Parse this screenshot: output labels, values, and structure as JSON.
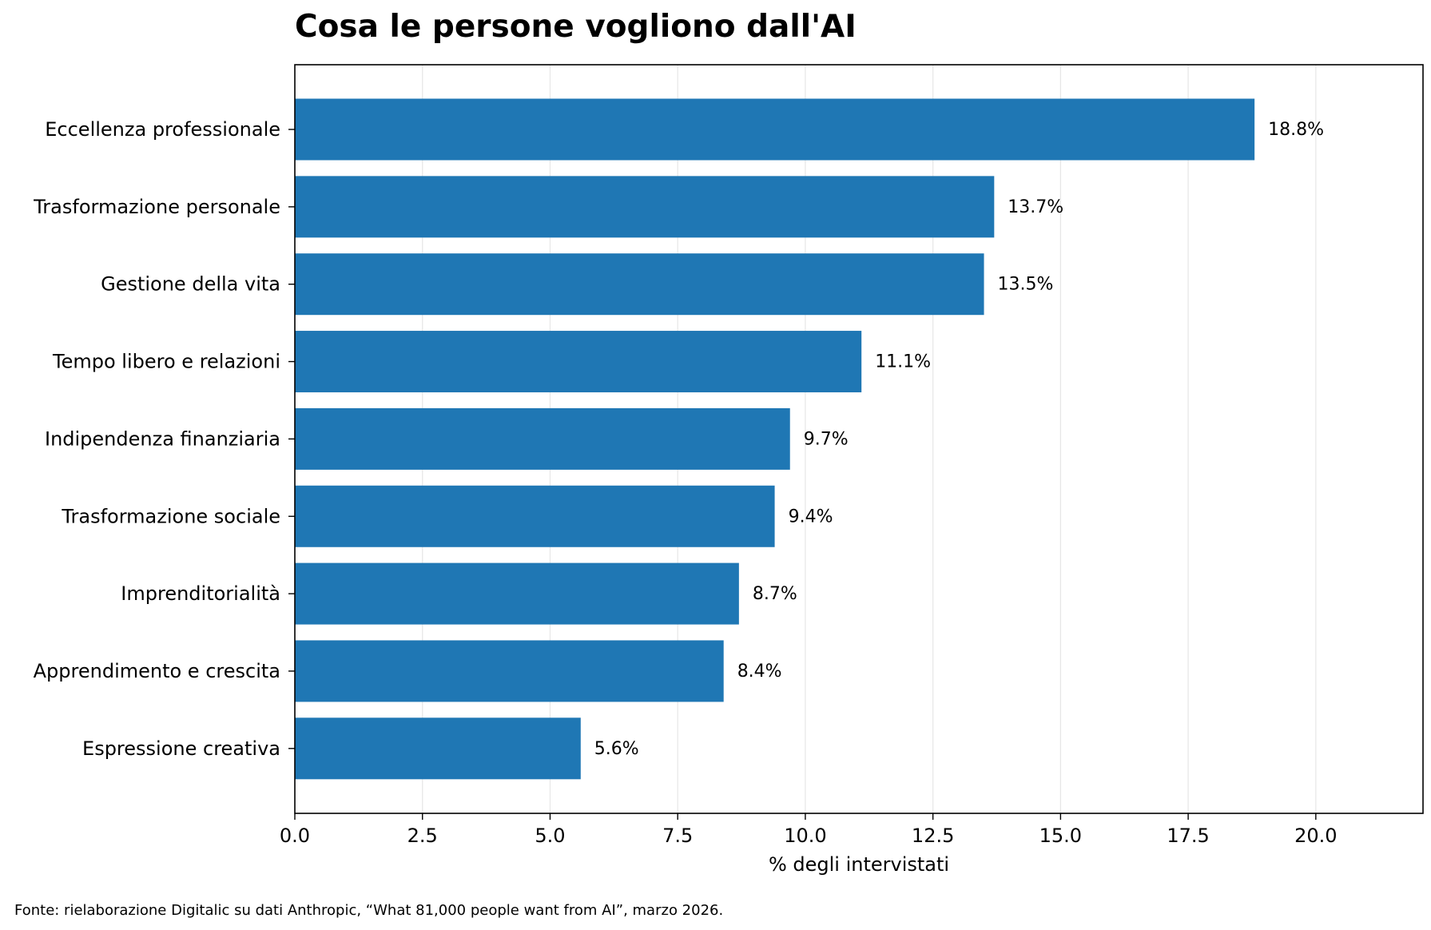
{
  "chart_data": {
    "type": "bar",
    "orientation": "horizontal",
    "title": "Cosa le persone vogliono dall'AI",
    "xlabel": "% degli intervistati",
    "ylabel": "",
    "xlim": [
      0,
      22.1
    ],
    "xticks": [
      0.0,
      2.5,
      5.0,
      7.5,
      10.0,
      12.5,
      15.0,
      17.5,
      20.0
    ],
    "xtick_labels": [
      "0.0",
      "2.5",
      "5.0",
      "7.5",
      "10.0",
      "12.5",
      "15.0",
      "17.5",
      "20.0"
    ],
    "grid": "vertical",
    "bar_color": "#1f77b4",
    "categories": [
      "Eccellenza professionale",
      "Trasformazione personale",
      "Gestione della vita",
      "Tempo libero e relazioni",
      "Indipendenza finanziaria",
      "Trasformazione sociale",
      "Imprenditorialità",
      "Apprendimento e crescita",
      "Espressione creativa"
    ],
    "values": [
      18.8,
      13.7,
      13.5,
      11.1,
      9.7,
      9.4,
      8.7,
      8.4,
      5.6
    ],
    "data_labels": [
      "18.8%",
      "13.7%",
      "13.5%",
      "11.1%",
      "9.7%",
      "9.4%",
      "8.7%",
      "8.4%",
      "5.6%"
    ]
  },
  "source_note": "Fonte: rielaborazione Digitalic su dati Anthropic, “What 81,000 people want from AI”, marzo 2026."
}
